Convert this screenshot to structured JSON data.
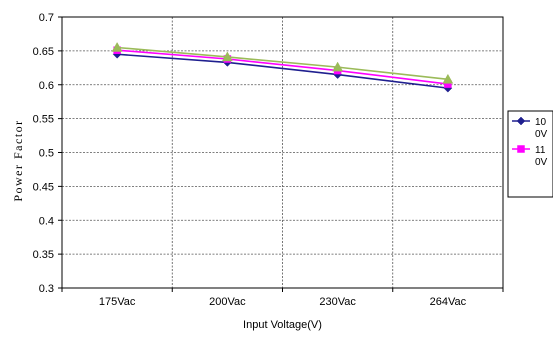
{
  "chart_data": {
    "type": "line",
    "xlabel": "Input Voltage(V)",
    "ylabel": "Power Factor",
    "ylim": [
      0.3,
      0.7
    ],
    "ytick_labels": [
      "0.7",
      "0.65",
      "0.6",
      "0.55",
      "0.5",
      "0.45",
      "0.4",
      "0.35",
      "0.3"
    ],
    "categories": [
      "175Vac",
      "200Vac",
      "230Vac",
      "264Vac"
    ],
    "grid": true,
    "legend_position": "right",
    "series": [
      {
        "name_line1": "10",
        "name_line2": "0V",
        "values": [
          0.645,
          0.633,
          0.615,
          0.595
        ],
        "color": "#1f1f8f",
        "marker": "diamond"
      },
      {
        "name_line1": "11",
        "name_line2": "0V",
        "values": [
          0.651,
          0.638,
          0.621,
          0.601
        ],
        "color": "#ff00ff",
        "marker": "square"
      },
      {
        "name_line1": "",
        "name_line2": "",
        "values": [
          0.655,
          0.641,
          0.626,
          0.608
        ],
        "color": "#9bbb59",
        "marker": "triangle"
      }
    ]
  }
}
